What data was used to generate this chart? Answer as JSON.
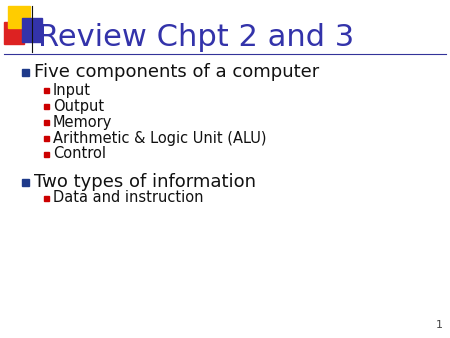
{
  "title": "Review Chpt 2 and 3",
  "title_color": "#3333aa",
  "background_color": "#ffffff",
  "slide_number": "1",
  "title_font_size": 22,
  "bullet1_text": "Five components of a computer",
  "bullet1_color": "#111111",
  "bullet1_font_size": 13,
  "sub_bullets1": [
    "Input",
    "Output",
    "Memory",
    "Arithmetic & Logic Unit (ALU)",
    "Control"
  ],
  "sub_bullet_color": "#111111",
  "sub_bullet_font_size": 10.5,
  "bullet2_text": "Two types of information",
  "bullet2_color": "#111111",
  "bullet2_font_size": 13,
  "sub_bullets2": [
    "Data and instruction"
  ],
  "bullet_square_color": "#1e3a8a",
  "sub_bullet_square_color": "#cc0000",
  "header_line_color": "#333399",
  "logo_yellow": "#ffcc00",
  "logo_red": "#dd2222",
  "logo_blue": "#3333aa",
  "slide_num_color": "#444444",
  "slide_num_fontsize": 8
}
